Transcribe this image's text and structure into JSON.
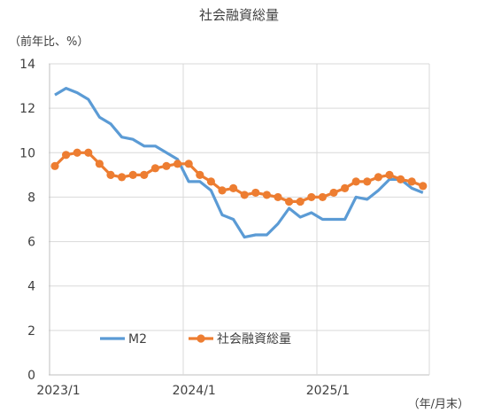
{
  "chart_data": {
    "type": "line",
    "title": "社会融資総量",
    "ylabel": "（前年比、%）",
    "xlabel": "（年/月末）",
    "ylim": [
      0,
      14
    ],
    "yticks": [
      0,
      2,
      4,
      6,
      8,
      10,
      12,
      14
    ],
    "x_tick_labels": [
      {
        "index": 0,
        "label": "2023/1"
      },
      {
        "index": 12,
        "label": "2024/1"
      },
      {
        "index": 24,
        "label": "2025/1"
      }
    ],
    "grid": true,
    "legend_position": "bottom-left",
    "series": [
      {
        "name": "M2",
        "color": "#5b9bd5",
        "marker": "none",
        "values": [
          12.6,
          12.9,
          12.7,
          12.4,
          11.6,
          11.3,
          10.7,
          10.6,
          10.3,
          10.3,
          10.0,
          9.7,
          8.7,
          8.7,
          8.3,
          7.2,
          7.0,
          6.2,
          6.3,
          6.3,
          6.8,
          7.5,
          7.1,
          7.3,
          7.0,
          7.0,
          7.0,
          8.0,
          7.9,
          8.3,
          8.8,
          8.8,
          8.4,
          8.2
        ]
      },
      {
        "name": "社会融資総量",
        "color": "#ed7d31",
        "marker": "circle",
        "values": [
          9.4,
          9.9,
          10.0,
          10.0,
          9.5,
          9.0,
          8.9,
          9.0,
          9.0,
          9.3,
          9.4,
          9.5,
          9.5,
          9.0,
          8.7,
          8.3,
          8.4,
          8.1,
          8.2,
          8.1,
          8.0,
          7.8,
          7.8,
          8.0,
          8.0,
          8.2,
          8.4,
          8.7,
          8.7,
          8.9,
          9.0,
          8.8,
          8.7,
          8.5
        ]
      }
    ]
  }
}
